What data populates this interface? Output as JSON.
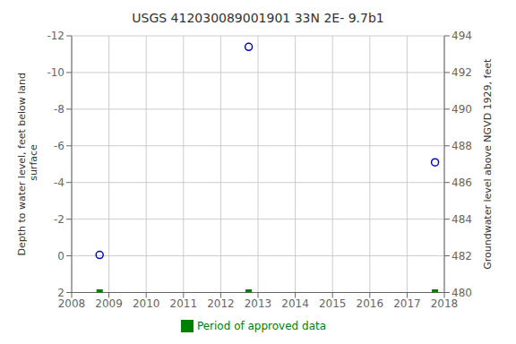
{
  "chart_data": {
    "type": "scatter",
    "title": "USGS 412030089001901 33N 2E- 9.7b1",
    "y_label": "Depth to water level, feet below land\n surface",
    "y2_label": "Groundwater level above NGVD 1929, feet",
    "x": [
      2008.75,
      2012.75,
      2017.75
    ],
    "xlim": [
      2008,
      2018
    ],
    "xticks": [
      2008,
      2009,
      2010,
      2011,
      2012,
      2013,
      2014,
      2015,
      2016,
      2017,
      2018
    ],
    "ylim": [
      2,
      -12
    ],
    "yticks": [
      2,
      0,
      -2,
      -4,
      -6,
      -8,
      -10,
      -12
    ],
    "y2lim": [
      480,
      494
    ],
    "y2ticks": [
      480,
      482,
      484,
      486,
      488,
      490,
      492,
      494
    ],
    "grid": true,
    "series": [
      {
        "color": "#0000cc",
        "marker": "circle",
        "values": [
          -0.05,
          -11.4,
          -5.1
        ]
      },
      {
        "name": "Period of approved data",
        "color": "#008000",
        "marker": "square",
        "values": [
          2.0,
          2.0,
          2.0
        ]
      }
    ]
  }
}
